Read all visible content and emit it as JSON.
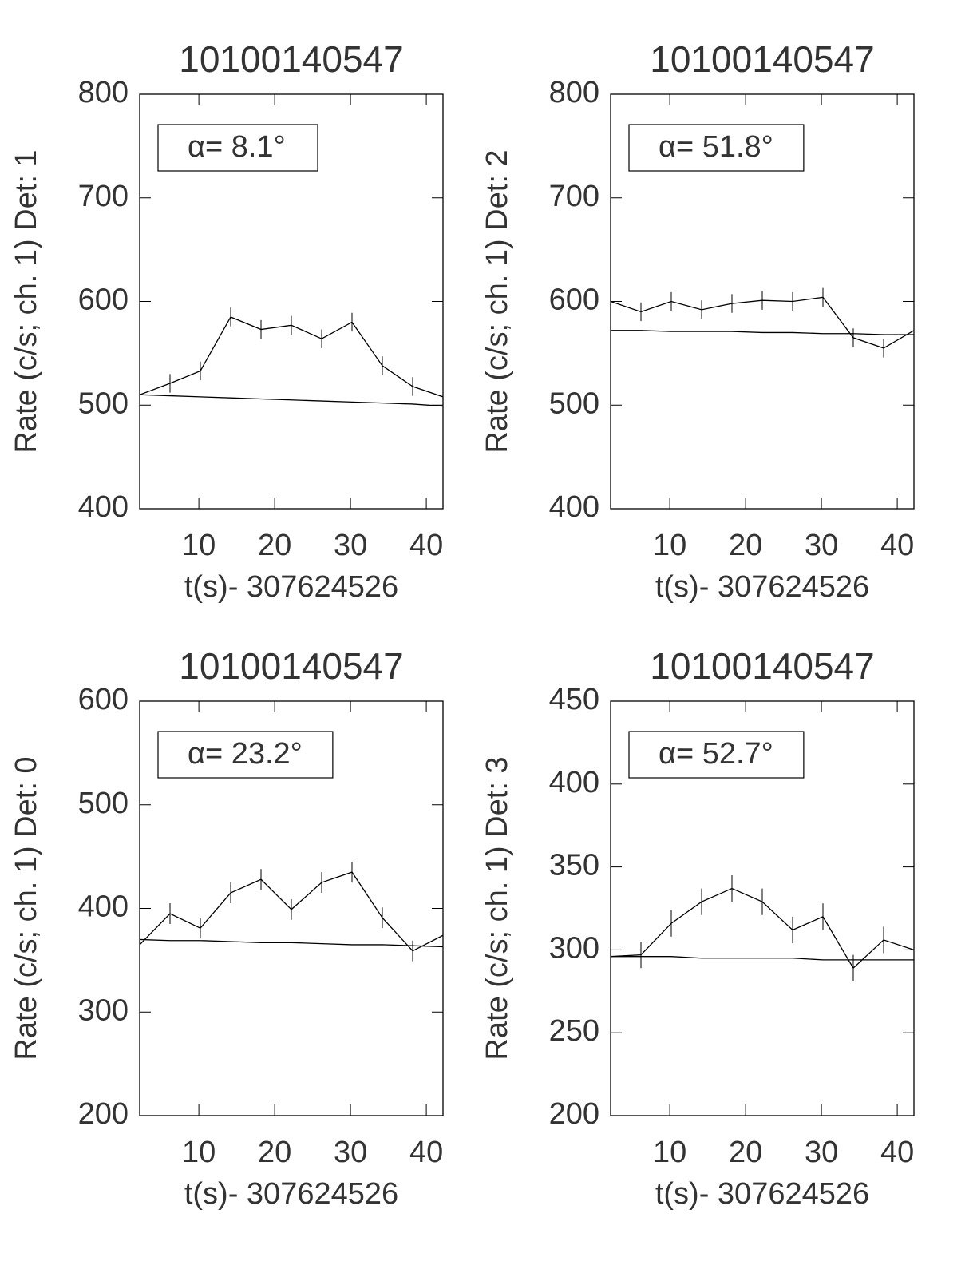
{
  "chart_data": [
    {
      "type": "line",
      "title": "10100140547",
      "xlabel": "t(s)- 307624526",
      "ylabel": "Rate (c/s; ch. 1) Det: 1",
      "annotation": "α= 8.1°",
      "x": [
        2.2,
        6.2,
        10.2,
        14.2,
        18.2,
        22.2,
        26.2,
        30.2,
        34.2,
        38.2,
        42.2
      ],
      "xlim": [
        2.2,
        42.2
      ],
      "xticks": [
        10,
        20,
        30,
        40
      ],
      "ylim": [
        400,
        800
      ],
      "yticks": [
        400,
        500,
        600,
        700,
        800
      ],
      "series": [
        {
          "color": "#000000",
          "values": [
            510,
            521,
            533,
            585,
            573,
            577,
            564,
            580,
            538,
            518,
            508
          ],
          "errors": [
            9,
            9,
            9,
            9,
            9,
            9,
            9,
            9,
            9,
            9,
            9
          ]
        },
        {
          "color": "#000000",
          "values": [
            510,
            509,
            508,
            507,
            506,
            505,
            504,
            503,
            502,
            501,
            499
          ]
        }
      ]
    },
    {
      "type": "line",
      "title": "10100140547",
      "xlabel": "t(s)- 307624526",
      "ylabel": "Rate (c/s; ch. 1) Det: 2",
      "annotation": "α= 51.8°",
      "x": [
        2.2,
        6.2,
        10.2,
        14.2,
        18.2,
        22.2,
        26.2,
        30.2,
        34.2,
        38.2,
        42.2
      ],
      "xlim": [
        2.2,
        42.2
      ],
      "xticks": [
        10,
        20,
        30,
        40
      ],
      "ylim": [
        400,
        800
      ],
      "yticks": [
        400,
        500,
        600,
        700,
        800
      ],
      "series": [
        {
          "color": "#000000",
          "values": [
            600,
            590,
            600,
            592,
            598,
            601,
            600,
            604,
            565,
            555,
            572
          ],
          "errors": [
            9,
            9,
            9,
            9,
            9,
            9,
            9,
            9,
            9,
            9,
            9
          ]
        },
        {
          "color": "#000000",
          "values": [
            572,
            572,
            571,
            571,
            571,
            570,
            570,
            569,
            569,
            568,
            568
          ]
        }
      ]
    },
    {
      "type": "line",
      "title": "10100140547",
      "xlabel": "t(s)- 307624526",
      "ylabel": "Rate (c/s; ch. 1) Det: 0",
      "annotation": "α= 23.2°",
      "x": [
        2.2,
        6.2,
        10.2,
        14.2,
        18.2,
        22.2,
        26.2,
        30.2,
        34.2,
        38.2,
        42.2
      ],
      "xlim": [
        2.2,
        42.2
      ],
      "xticks": [
        10,
        20,
        30,
        40
      ],
      "ylim": [
        200,
        600
      ],
      "yticks": [
        200,
        300,
        400,
        500,
        600
      ],
      "series": [
        {
          "color": "#000000",
          "values": [
            365,
            395,
            381,
            415,
            428,
            399,
            425,
            435,
            391,
            359,
            374
          ],
          "errors": [
            10,
            10,
            10,
            10,
            10,
            10,
            10,
            10,
            10,
            10,
            10
          ]
        },
        {
          "color": "#000000",
          "values": [
            370,
            369,
            369,
            368,
            367,
            367,
            366,
            365,
            365,
            364,
            363
          ]
        }
      ]
    },
    {
      "type": "line",
      "title": "10100140547",
      "xlabel": "t(s)- 307624526",
      "ylabel": "Rate (c/s; ch. 1) Det: 3",
      "annotation": "α= 52.7°",
      "x": [
        2.2,
        6.2,
        10.2,
        14.2,
        18.2,
        22.2,
        26.2,
        30.2,
        34.2,
        38.2,
        42.2
      ],
      "xlim": [
        2.2,
        42.2
      ],
      "xticks": [
        10,
        20,
        30,
        40
      ],
      "ylim": [
        200,
        450
      ],
      "yticks": [
        200,
        250,
        300,
        350,
        400,
        450
      ],
      "series": [
        {
          "color": "#000000",
          "values": [
            296,
            297,
            316,
            329,
            337,
            329,
            312,
            320,
            289,
            306,
            300
          ],
          "errors": [
            8,
            8,
            8,
            8,
            8,
            8,
            8,
            8,
            8,
            8,
            8
          ]
        },
        {
          "color": "#000000",
          "values": [
            296,
            296,
            296,
            295,
            295,
            295,
            295,
            294,
            294,
            294,
            294
          ]
        }
      ]
    }
  ]
}
